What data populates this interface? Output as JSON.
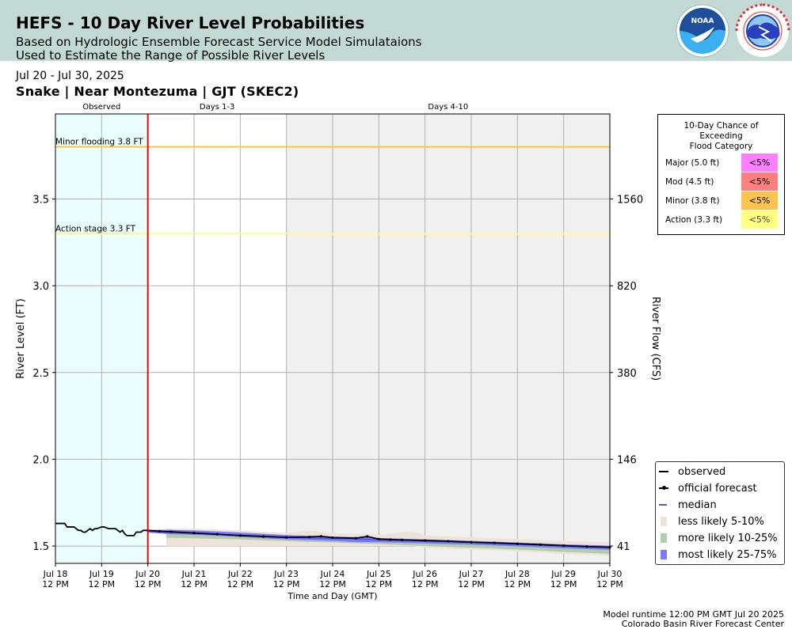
{
  "header": {
    "title": "HEFS - 10 Day River Level Probabilities",
    "subtitle1": "Based on Hydrologic Ensemble Forecast Service Model Simulataions",
    "subtitle2": "Used to Estimate the Range of Possible River Levels",
    "noaa_logo_text": "NOAA",
    "nws_logo_text": "NATIONAL WEATHER SERVICE",
    "colors": {
      "header_bg": "#c2d9d6"
    }
  },
  "date_range": "Jul 20 - Jul 30, 2025",
  "site_title": "Snake | Near Montezuma | GJT (SKEC2)",
  "footer": {
    "runtime": "Model runtime 12:00 PM GMT Jul 20 2025",
    "center": "Colorado Basin River Forecast Center"
  },
  "chart_data": {
    "type": "line",
    "xlabel": "Time and Day (GMT)",
    "ylabel": "River Level (FT)",
    "ylabel_right": "River Flow (CFS)",
    "ylim": [
      1.4,
      3.99
    ],
    "xlim_days": [
      0,
      12
    ],
    "x_ticks": [
      {
        "date": "Jul 18",
        "time": "12 PM"
      },
      {
        "date": "Jul 19",
        "time": "12 PM"
      },
      {
        "date": "Jul 20",
        "time": "12 PM"
      },
      {
        "date": "Jul 21",
        "time": "12 PM"
      },
      {
        "date": "Jul 22",
        "time": "12 PM"
      },
      {
        "date": "Jul 23",
        "time": "12 PM"
      },
      {
        "date": "Jul 24",
        "time": "12 PM"
      },
      {
        "date": "Jul 25",
        "time": "12 PM"
      },
      {
        "date": "Jul 26",
        "time": "12 PM"
      },
      {
        "date": "Jul 27",
        "time": "12 PM"
      },
      {
        "date": "Jul 28",
        "time": "12 PM"
      },
      {
        "date": "Jul 29",
        "time": "12 PM"
      },
      {
        "date": "Jul 30",
        "time": "12 PM"
      }
    ],
    "y_ticks": [
      "1.5",
      "2.0",
      "2.5",
      "3.0",
      "3.5"
    ],
    "right_ticks": [
      {
        "stage": 1.5,
        "label": "41"
      },
      {
        "stage": 2.0,
        "label": "146"
      },
      {
        "stage": 2.5,
        "label": "380"
      },
      {
        "stage": 3.0,
        "label": "820"
      },
      {
        "stage": 3.5,
        "label": "1560"
      }
    ],
    "periods": [
      {
        "label": "Observed",
        "start": 0,
        "end": 2,
        "color": "#ebfefe"
      },
      {
        "label": "Days 1-3",
        "start": 2,
        "end": 5,
        "color": "#ffffff"
      },
      {
        "label": "Days 4-10",
        "start": 5,
        "end": 12,
        "color": "#f0f0f0"
      }
    ],
    "forecast_start": 2,
    "thresholds": [
      {
        "label": "Minor flooding 3.8 FT",
        "value": 3.8,
        "color": "#ffc34d"
      },
      {
        "label": "Action stage 3.3 FT",
        "value": 3.3,
        "color": "#ffff80"
      }
    ],
    "observed": {
      "name": "observed",
      "color": "#000000",
      "x": [
        0,
        0.2,
        0.25,
        0.4,
        0.5,
        0.55,
        0.6,
        0.65,
        0.75,
        0.8,
        0.85,
        0.9,
        1.0,
        1.05,
        1.15,
        1.25,
        1.3,
        1.4,
        1.45,
        1.5,
        1.55,
        1.6,
        1.7,
        1.75,
        1.85,
        1.9,
        2.0
      ],
      "y": [
        1.63,
        1.63,
        1.61,
        1.61,
        1.59,
        1.59,
        1.58,
        1.58,
        1.6,
        1.59,
        1.6,
        1.6,
        1.61,
        1.61,
        1.6,
        1.6,
        1.6,
        1.58,
        1.59,
        1.57,
        1.56,
        1.56,
        1.56,
        1.58,
        1.58,
        1.59,
        1.59
      ]
    },
    "official_forecast": {
      "name": "official forecast",
      "color": "#000000",
      "x": [
        2,
        2.25,
        2.5,
        3,
        3.5,
        4,
        4.5,
        5,
        5.5,
        5.75,
        6,
        6.5,
        6.75,
        7,
        7.25,
        7.5,
        8,
        8.5,
        9,
        9.5,
        10,
        10.5,
        11,
        11.5,
        12
      ],
      "y": [
        1.59,
        1.585,
        1.582,
        1.575,
        1.568,
        1.56,
        1.555,
        1.55,
        1.552,
        1.556,
        1.548,
        1.545,
        1.555,
        1.54,
        1.537,
        1.535,
        1.532,
        1.528,
        1.522,
        1.518,
        1.513,
        1.508,
        1.502,
        1.497,
        1.493
      ]
    },
    "median": {
      "name": "median",
      "color": "#5555ff",
      "x": [
        2,
        2.5,
        3,
        4,
        5,
        6,
        6.5,
        7,
        8,
        9,
        10,
        11,
        12
      ],
      "y": [
        1.585,
        1.578,
        1.572,
        1.562,
        1.55,
        1.543,
        1.54,
        1.535,
        1.527,
        1.52,
        1.51,
        1.5,
        1.49
      ]
    },
    "band_25_75": {
      "name": "most likely 25-75%",
      "color": "#7b7bff",
      "x": [
        2,
        2.4,
        3,
        4,
        5,
        6,
        6.5,
        7,
        8,
        9,
        10,
        11,
        12
      ],
      "lower": [
        1.577,
        1.57,
        1.565,
        1.552,
        1.538,
        1.53,
        1.522,
        1.522,
        1.515,
        1.508,
        1.498,
        1.487,
        1.478
      ],
      "upper": [
        1.593,
        1.594,
        1.59,
        1.578,
        1.563,
        1.555,
        1.551,
        1.546,
        1.538,
        1.53,
        1.52,
        1.51,
        1.502
      ]
    },
    "band_10_25": {
      "name": "more likely 10-25%",
      "color": "#b2cda9",
      "x": [
        2.4,
        3,
        4,
        5,
        6,
        7,
        8,
        9,
        10,
        11,
        12
      ],
      "lower": [
        1.548,
        1.545,
        1.538,
        1.528,
        1.52,
        1.512,
        1.5,
        1.49,
        1.48,
        1.466,
        1.455
      ],
      "upper": [
        1.577,
        1.57,
        1.565,
        1.552,
        1.538,
        1.53,
        1.522,
        1.515,
        1.508,
        1.498,
        1.487
      ]
    },
    "band_5_10": {
      "name": "less likely 5-10%",
      "color": "#eee3d8",
      "x": [
        2.4,
        3,
        4,
        5,
        5.5,
        6,
        7,
        7.75,
        8,
        9,
        10,
        11,
        12
      ],
      "lower": [
        1.5,
        1.5,
        1.5,
        1.5,
        1.5,
        1.5,
        1.5,
        1.5,
        1.49,
        1.48,
        1.47,
        1.455,
        1.445
      ],
      "upper": [
        1.6,
        1.6,
        1.59,
        1.575,
        1.59,
        1.575,
        1.565,
        1.585,
        1.56,
        1.55,
        1.54,
        1.53,
        1.52
      ]
    },
    "legend": [
      {
        "label": "observed",
        "symbol": "line",
        "color": "#000000"
      },
      {
        "label": "official forecast",
        "symbol": "line-dot",
        "color": "#000000"
      },
      {
        "label": "median",
        "symbol": "line",
        "color": "#5555ff"
      },
      {
        "label": "less likely 5-10%",
        "symbol": "patch",
        "color": "#eee3d8"
      },
      {
        "label": "more likely 10-25%",
        "symbol": "patch",
        "color": "#b2cda9"
      },
      {
        "label": "most likely 25-75%",
        "symbol": "patch",
        "color": "#7b7bff"
      }
    ],
    "flood_chance": {
      "title": [
        "10-Day Chance of",
        "Exceeding",
        "Flood Category"
      ],
      "rows": [
        {
          "label": "Major (5.0 ft)",
          "value": "<5%",
          "color": "#ff80ff"
        },
        {
          "label": "Mod (4.5 ft)",
          "value": "<5%",
          "color": "#ff7f7f"
        },
        {
          "label": "Minor (3.8 ft)",
          "value": "<5%",
          "color": "#ffc34d"
        },
        {
          "label": "Action (3.3 ft)",
          "value": "<5%",
          "color": "#ffff80"
        }
      ]
    }
  }
}
